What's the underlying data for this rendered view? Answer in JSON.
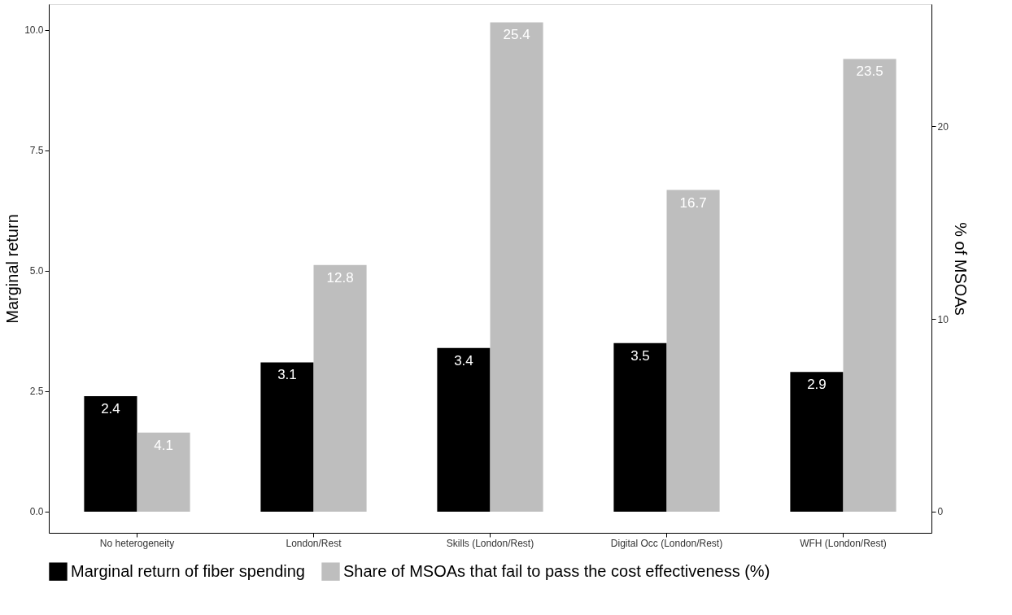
{
  "chart_data": {
    "type": "bar",
    "categories": [
      "No heterogeneity",
      "London/Rest",
      "Skills (London/Rest)",
      "Digital Occ (London/Rest)",
      "WFH (London/Rest)"
    ],
    "series": [
      {
        "name": "Marginal return of fiber spending",
        "color": "#000000",
        "values": [
          2.4,
          3.1,
          3.4,
          3.5,
          2.9
        ]
      },
      {
        "name": "Share of MSOAs that fail to pass the cost effectiveness (%)",
        "color": "#bebebe",
        "axis": "y2",
        "values": [
          4.1,
          12.8,
          25.4,
          16.7,
          23.5
        ]
      }
    ],
    "ylabel": "Marginal return",
    "y2label": "% of MSOAs",
    "ylim": [
      -0.44,
      10.54
    ],
    "yticks": [
      {
        "value": 0,
        "label": "0.0"
      },
      2.5,
      {
        "value": 5,
        "label": "5.0"
      },
      7.5,
      {
        "value": 10,
        "label": "10.0"
      }
    ],
    "y2lim": [
      -1.1,
      26.35
    ],
    "y2ticks": [
      0,
      10,
      20
    ],
    "data_labels": true,
    "legend": "bottom",
    "grid": false
  }
}
